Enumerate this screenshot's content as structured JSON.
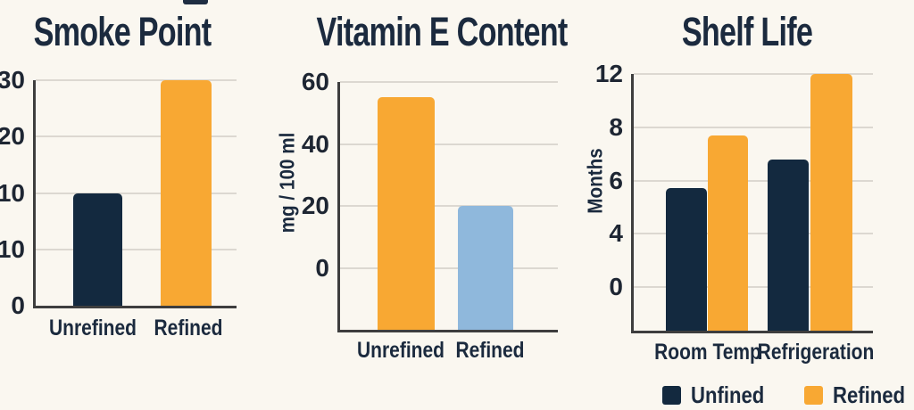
{
  "palette": {
    "navy": "#13293F",
    "orange": "#F8A833",
    "blue": "#8FB8DC",
    "background": "#FAF7F0",
    "title_text": "#1B2A3E",
    "tick_text": "#1E2633",
    "grid": "#DCD8D1",
    "axis": "#3E3E3E"
  },
  "chart_data": [
    {
      "type": "bar",
      "title": "Smoke Point",
      "ylabel": "",
      "xlabel": "",
      "ylim": [
        0,
        30
      ],
      "grid": true,
      "yticks": [
        {
          "label": "30",
          "value": 30
        },
        {
          "label": "20",
          "value": 20
        },
        {
          "label": "10",
          "value": 10
        },
        {
          "label": "10",
          "value": 10
        },
        {
          "label": "0",
          "value": 0
        }
      ],
      "axis_extends_below_last_tick_fraction": 0,
      "categories": [
        "Unrefined",
        "Refined"
      ],
      "bars": [
        {
          "category": "Unrefined",
          "value": 10,
          "color": "navy"
        },
        {
          "category": "Refined",
          "value": 30,
          "color": "orange"
        }
      ]
    },
    {
      "type": "bar",
      "title": "Vitamin E Content",
      "ylabel": "mg / 100 ml",
      "xlabel": "",
      "ylim": [
        0,
        60
      ],
      "grid": true,
      "yticks": [
        {
          "label": "60",
          "value": 60
        },
        {
          "label": "40",
          "value": 40
        },
        {
          "label": "20",
          "value": 20
        },
        {
          "label": "0",
          "value": 0
        }
      ],
      "axis_extends_below_last_tick_fraction": 1.0,
      "categories": [
        "Unrefined",
        "Refined"
      ],
      "bars": [
        {
          "category": "Unrefined",
          "value": 55,
          "color": "orange"
        },
        {
          "category": "Refined",
          "value": 20,
          "color": "blue"
        }
      ]
    },
    {
      "type": "bar",
      "title": "Shelf Life",
      "ylabel": "Months",
      "xlabel": "",
      "ylim": [
        0,
        12
      ],
      "grid": true,
      "yticks": [
        {
          "label": "12",
          "value": 12
        },
        {
          "label": "8",
          "value": 8
        },
        {
          "label": "6",
          "value": 6
        },
        {
          "label": "4",
          "value": 4
        },
        {
          "label": "0",
          "value": 0
        }
      ],
      "axis_extends_below_last_tick_fraction": 0.82,
      "categories": [
        "Room Temp",
        "Refrigeration"
      ],
      "series": [
        "Unfined",
        "Refined"
      ],
      "bars": [
        {
          "category": "Room Temp",
          "series": "Unfined",
          "value": 5.7,
          "color": "navy"
        },
        {
          "category": "Room Temp",
          "series": "Refined",
          "value": 7.7,
          "color": "orange"
        },
        {
          "category": "Refrigeration",
          "series": "Unfined",
          "value": 6.8,
          "color": "navy"
        },
        {
          "category": "Refrigeration",
          "series": "Refined",
          "value": 12,
          "color": "orange"
        }
      ],
      "legend_position": "bottom",
      "legend": [
        {
          "label": "Unfined",
          "color": "navy"
        },
        {
          "label": "Refined",
          "color": "orange"
        }
      ]
    }
  ]
}
